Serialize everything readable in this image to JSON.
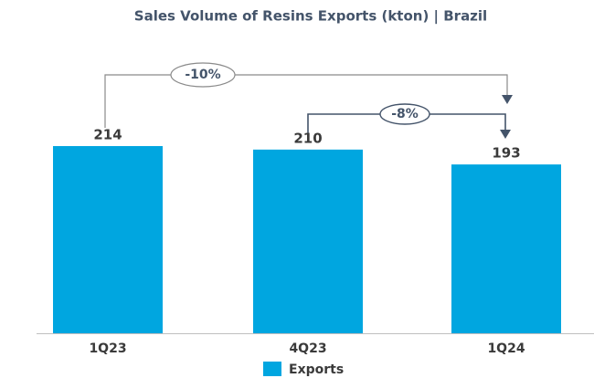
{
  "chart_data": {
    "type": "bar",
    "title": "Sales Volume of Resins Exports (kton) | Brazil",
    "categories": [
      "1Q23",
      "4Q23",
      "1Q24"
    ],
    "series": [
      {
        "name": "Exports",
        "color": "#00a6e0",
        "values": [
          214,
          210,
          193
        ]
      }
    ],
    "annotations": [
      "-10%",
      "-8%"
    ]
  }
}
